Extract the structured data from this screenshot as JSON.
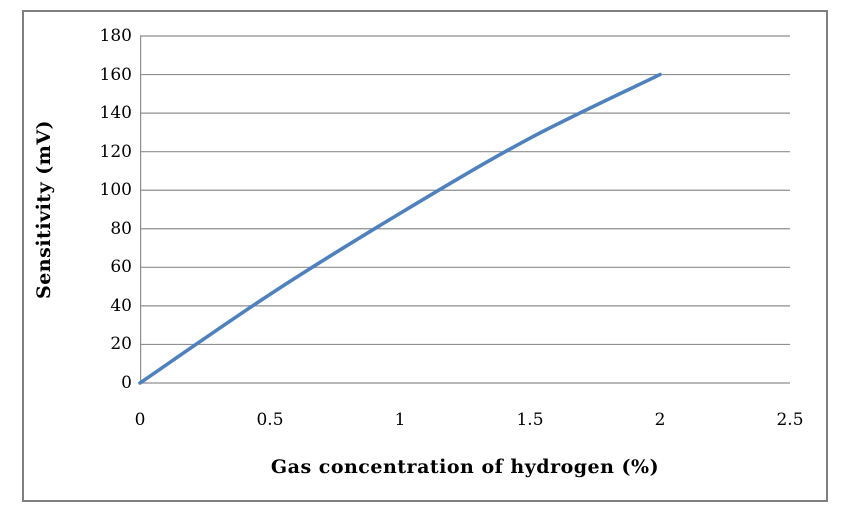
{
  "chart": {
    "y_axis_title": "Sensitivity (mV)",
    "x_axis_title": "Gas concentration of hydrogen (%)",
    "y_tick_labels": [
      "180",
      "160",
      "140",
      "120",
      "100",
      "80",
      "60",
      "40",
      "20",
      "0"
    ],
    "x_tick_labels": [
      "0",
      "0.5",
      "1",
      "1.5",
      "2",
      "2.5"
    ]
  },
  "chart_data": {
    "type": "line",
    "title": "",
    "xlabel": "Gas concentration of hydrogen (%)",
    "ylabel": "Sensitivity (mV)",
    "x": [
      0,
      0.5,
      1,
      1.5,
      2
    ],
    "series": [
      {
        "name": "Sensitivity",
        "values": [
          0,
          46,
          88,
          127,
          160
        ]
      }
    ],
    "xlim": [
      0,
      2.5
    ],
    "ylim": [
      0,
      180
    ],
    "x_ticks": [
      0,
      0.5,
      1,
      1.5,
      2,
      2.5
    ],
    "y_ticks": [
      0,
      20,
      40,
      60,
      80,
      100,
      120,
      140,
      160,
      180
    ],
    "grid": "horizontal-only",
    "legend": "none",
    "smooth_line": true,
    "colors": {
      "line": "#4F81BD",
      "gridline": "#8f8f8f",
      "axis": "#8f8f8f",
      "frame_border": "#7f7f7f",
      "text": "#000000"
    }
  }
}
